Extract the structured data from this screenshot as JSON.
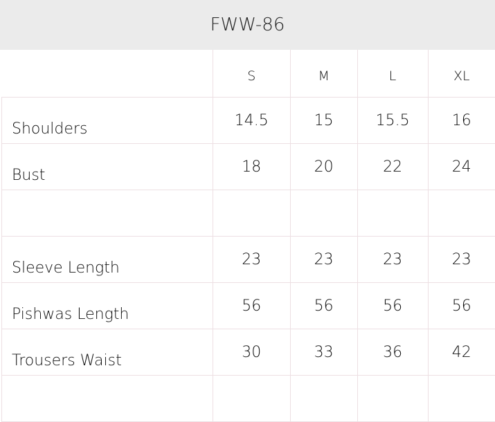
{
  "title": "FWW-86",
  "sizes": [
    "S",
    "M",
    "L",
    "XL"
  ],
  "rows": [
    {
      "label": "Shoulders",
      "values": [
        "14.5",
        "15",
        "15.5",
        "16"
      ]
    },
    {
      "label": "Bust",
      "values": [
        "18",
        "20",
        "22",
        "24"
      ]
    },
    {
      "label": "",
      "values": [
        "",
        "",
        "",
        ""
      ]
    },
    {
      "label": "Sleeve Length",
      "values": [
        "23",
        "23",
        "23",
        "23"
      ]
    },
    {
      "label": "Pishwas Length",
      "values": [
        "56",
        "56",
        "56",
        "56"
      ]
    },
    {
      "label": "Trousers Waist",
      "values": [
        "30",
        "33",
        "36",
        "42"
      ]
    },
    {
      "label": "",
      "values": [
        "",
        "",
        "",
        ""
      ]
    }
  ]
}
